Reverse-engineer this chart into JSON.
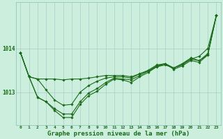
{
  "title": "Graphe pression niveau de la mer (hPa)",
  "background_color": "#cceedd",
  "grid_color": "#aacccc",
  "line_color": "#1a6b1a",
  "x_hours": [
    0,
    1,
    2,
    3,
    4,
    5,
    6,
    7,
    8,
    9,
    10,
    11,
    12,
    13,
    14,
    15,
    16,
    17,
    18,
    19,
    20,
    21,
    22,
    23
  ],
  "lines": [
    [
      1013.9,
      1013.35,
      1013.3,
      1013.3,
      1013.3,
      1013.28,
      1013.3,
      1013.3,
      1013.32,
      1013.35,
      1013.38,
      1013.38,
      1013.38,
      1013.35,
      1013.42,
      1013.48,
      1013.58,
      1013.62,
      1013.55,
      1013.65,
      1013.75,
      1013.82,
      1014.0,
      1014.75
    ],
    [
      1013.9,
      1013.35,
      1013.3,
      1013.05,
      1012.82,
      1012.7,
      1012.72,
      1013.0,
      1013.15,
      1013.25,
      1013.32,
      1013.35,
      1013.35,
      1013.32,
      1013.42,
      1013.5,
      1013.62,
      1013.65,
      1013.55,
      1013.65,
      1013.78,
      1013.72,
      1013.85,
      1014.75
    ],
    [
      1013.9,
      1013.35,
      1012.88,
      1012.78,
      1012.62,
      1012.5,
      1012.5,
      1012.78,
      1012.98,
      1013.08,
      1013.22,
      1013.32,
      1013.3,
      1013.28,
      1013.38,
      1013.48,
      1013.6,
      1013.65,
      1013.55,
      1013.62,
      1013.75,
      1013.72,
      1013.88,
      1014.75
    ],
    [
      1013.9,
      1013.35,
      1012.88,
      1012.78,
      1012.58,
      1012.42,
      1012.42,
      1012.72,
      1012.92,
      1013.02,
      1013.18,
      1013.3,
      1013.28,
      1013.22,
      1013.35,
      1013.45,
      1013.58,
      1013.65,
      1013.52,
      1013.6,
      1013.72,
      1013.68,
      1013.85,
      1014.75
    ]
  ],
  "yticks": [
    1013,
    1014
  ],
  "ylim": [
    1012.25,
    1015.05
  ],
  "xlim": [
    -0.5,
    23.5
  ]
}
